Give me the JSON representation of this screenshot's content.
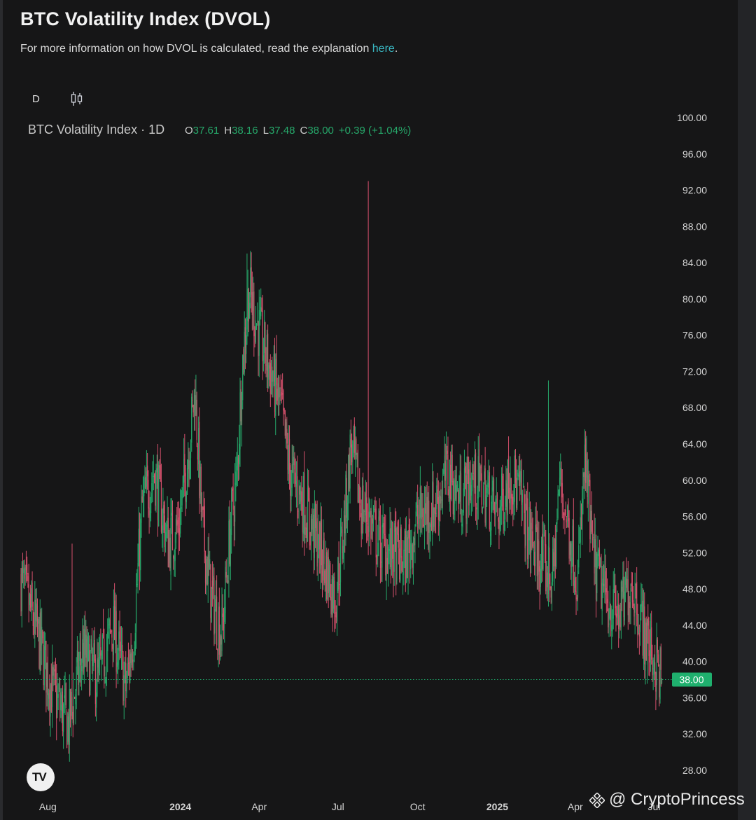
{
  "header": {
    "title": "BTC Volatility Index (DVOL)",
    "subtitle_prefix": "For more information on how DVOL is calculated, read the explanation ",
    "subtitle_link": "here",
    "subtitle_suffix": "."
  },
  "toolbar": {
    "interval": "D",
    "chart_style_icon": "candlestick-icon"
  },
  "legend": {
    "symbol": "BTC Volatility Index · 1D",
    "o_label": "O",
    "o_value": "37.61",
    "h_label": "H",
    "h_value": "38.16",
    "l_label": "L",
    "l_value": "37.48",
    "c_label": "C",
    "c_value": "38.00",
    "change": "+0.39 (+1.04%)"
  },
  "watermark": {
    "text": "@ CryptoPrincess",
    "icon": "binance-icon"
  },
  "logo": {
    "text": "TV"
  },
  "colors": {
    "up": "#26a86a",
    "down": "#d5506c",
    "background": "#161617",
    "last_price_label": "#1fb06e",
    "link": "#39b7c2"
  },
  "chart_data": {
    "type": "candlestick",
    "interval": "1D",
    "title": "BTC Volatility Index (DVOL)",
    "ylim": [
      28,
      100
    ],
    "y_ticks": [
      "100.00",
      "96.00",
      "92.00",
      "88.00",
      "84.00",
      "80.00",
      "76.00",
      "72.00",
      "68.00",
      "64.00",
      "60.00",
      "56.00",
      "52.00",
      "48.00",
      "44.00",
      "40.00",
      "36.00",
      "32.00",
      "28.00"
    ],
    "x_ticks": [
      "Aug",
      "2024",
      "Apr",
      "Jul",
      "Oct",
      "2025",
      "Apr",
      "Jul"
    ],
    "last_price": "38.00",
    "x_start": "2023-07-01",
    "series": [
      {
        "date": "2023-07-01",
        "value": 49
      },
      {
        "date": "2023-07-20",
        "value": 43
      },
      {
        "date": "2023-08-05",
        "value": 37
      },
      {
        "date": "2023-08-25",
        "value": 33
      },
      {
        "date": "2023-09-10",
        "value": 41
      },
      {
        "date": "2023-09-28",
        "value": 38
      },
      {
        "date": "2023-10-15",
        "value": 44
      },
      {
        "date": "2023-10-30",
        "value": 37
      },
      {
        "date": "2023-11-08",
        "value": 43
      },
      {
        "date": "2023-11-18",
        "value": 57
      },
      {
        "date": "2023-12-02",
        "value": 61
      },
      {
        "date": "2023-12-18",
        "value": 53
      },
      {
        "date": "2023-12-30",
        "value": 55
      },
      {
        "date": "2024-01-10",
        "value": 63
      },
      {
        "date": "2024-01-18",
        "value": 70
      },
      {
        "date": "2024-01-26",
        "value": 55
      },
      {
        "date": "2024-02-06",
        "value": 47
      },
      {
        "date": "2024-02-18",
        "value": 43
      },
      {
        "date": "2024-02-28",
        "value": 55
      },
      {
        "date": "2024-03-06",
        "value": 60
      },
      {
        "date": "2024-03-12",
        "value": 72
      },
      {
        "date": "2024-03-20",
        "value": 81
      },
      {
        "date": "2024-04-02",
        "value": 76
      },
      {
        "date": "2024-04-14",
        "value": 72
      },
      {
        "date": "2024-04-26",
        "value": 68
      },
      {
        "date": "2024-05-06",
        "value": 61
      },
      {
        "date": "2024-05-20",
        "value": 58
      },
      {
        "date": "2024-06-08",
        "value": 53
      },
      {
        "date": "2024-06-28",
        "value": 47
      },
      {
        "date": "2024-07-08",
        "value": 55
      },
      {
        "date": "2024-07-16",
        "value": 64
      },
      {
        "date": "2024-07-28",
        "value": 57
      },
      {
        "date": "2024-08-05",
        "value": 56
      },
      {
        "date": "2024-08-18",
        "value": 53
      },
      {
        "date": "2024-09-02",
        "value": 52
      },
      {
        "date": "2024-09-16",
        "value": 51
      },
      {
        "date": "2024-10-02",
        "value": 56
      },
      {
        "date": "2024-10-20",
        "value": 57
      },
      {
        "date": "2024-11-05",
        "value": 61
      },
      {
        "date": "2024-11-18",
        "value": 58
      },
      {
        "date": "2024-12-02",
        "value": 60
      },
      {
        "date": "2024-12-16",
        "value": 59
      },
      {
        "date": "2025-01-02",
        "value": 56
      },
      {
        "date": "2025-01-16",
        "value": 61
      },
      {
        "date": "2025-01-28",
        "value": 58
      },
      {
        "date": "2025-02-06",
        "value": 54
      },
      {
        "date": "2025-02-20",
        "value": 51
      },
      {
        "date": "2025-03-06",
        "value": 49
      },
      {
        "date": "2025-03-14",
        "value": 60
      },
      {
        "date": "2025-03-24",
        "value": 55
      },
      {
        "date": "2025-04-04",
        "value": 49
      },
      {
        "date": "2025-04-12",
        "value": 62
      },
      {
        "date": "2025-04-22",
        "value": 51
      },
      {
        "date": "2025-05-06",
        "value": 47
      },
      {
        "date": "2025-05-22",
        "value": 45
      },
      {
        "date": "2025-06-05",
        "value": 49
      },
      {
        "date": "2025-06-20",
        "value": 43
      },
      {
        "date": "2025-07-02",
        "value": 40
      },
      {
        "date": "2025-07-10",
        "value": 38
      }
    ],
    "spikes": [
      {
        "date": "2023-08-29",
        "high": 53
      },
      {
        "date": "2024-03-18",
        "high": 85
      },
      {
        "date": "2024-08-05",
        "high": 93
      },
      {
        "date": "2025-03-01",
        "high": 71
      }
    ],
    "noise_seed": 7
  }
}
